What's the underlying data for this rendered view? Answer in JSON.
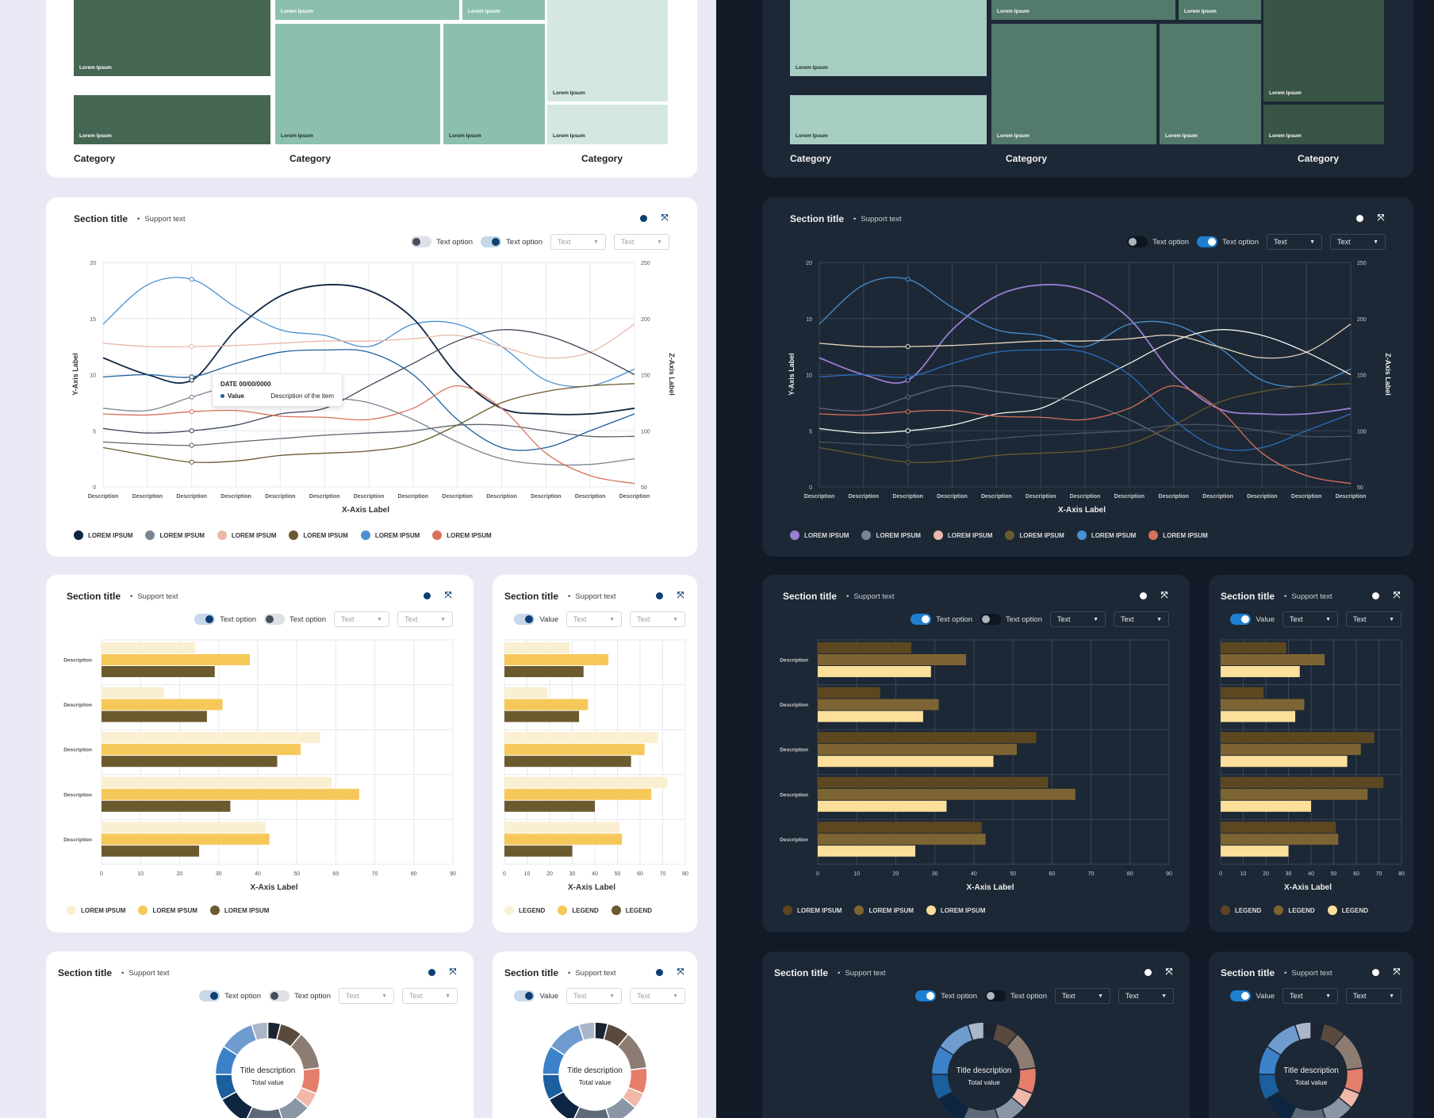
{
  "section": {
    "title": "Section title",
    "separator": "•",
    "support": "Support text",
    "toggle_label": "Text option",
    "value_label": "Value",
    "select_text": "Text",
    "select_caret": "▼",
    "expand_glyph": "⤧"
  },
  "treemap": {
    "categories": [
      "Category",
      "Category",
      "Category"
    ],
    "tile_label": "Lorem Ipsum"
  },
  "tooltip": {
    "date": "DATE 00/00/0000",
    "value": "Value",
    "description": "Description of the item"
  },
  "colors": {
    "light_bg": "#e9e9f6",
    "dark_bg": "#111a26",
    "light_panel": "#ffffff",
    "dark_panel": "#1d2836",
    "accent": "#0d3f72"
  },
  "chart_data": [
    {
      "type": "treemap",
      "id": "treemap",
      "categories": [
        "Category",
        "Category",
        "Category"
      ],
      "tile_label": "Lorem Ipsum"
    },
    {
      "type": "line",
      "id": "line",
      "xlabel": "X-Axis Label",
      "ylabel": "Y-Axis Label",
      "zlabel": "Z-Axis Label",
      "categories": [
        "Description",
        "Description",
        "Description",
        "Description",
        "Description",
        "Description",
        "Description",
        "Description",
        "Description",
        "Description",
        "Description",
        "Description",
        "Description"
      ],
      "ylim": [
        0,
        20
      ],
      "yticks": [
        0,
        5,
        10,
        15,
        20
      ],
      "zlim": [
        50,
        250
      ],
      "zticks": [
        50,
        100,
        150,
        200,
        250
      ],
      "legend": [
        "LOREM IPSUM",
        "LOREM IPSUM",
        "LOREM IPSUM",
        "LOREM IPSUM",
        "LOREM IPSUM",
        "LOREM IPSUM"
      ],
      "legend_colors_light": [
        "#0d2540",
        "#7a8591",
        "#e8b8a8",
        "#6b5a2e",
        "#4a90d0",
        "#d8705a"
      ],
      "legend_colors_dark": [
        "#9b7ed0",
        "#7a8591",
        "#e8b8a8",
        "#6b5a2e",
        "#4a90d0",
        "#d8705a"
      ],
      "series": [
        {
          "color_light": "#4a90d0",
          "color_dark": "#4a90d0",
          "values": [
            14.5,
            18,
            18.5,
            16,
            14,
            13.5,
            12.5,
            14.5,
            14.5,
            12.5,
            9.5,
            9,
            10.5
          ]
        },
        {
          "color_light": "#0d2540",
          "color_dark": "#9b7ed0",
          "values": [
            11.5,
            10,
            9.5,
            14,
            17,
            18,
            17.5,
            15,
            10,
            7,
            6.5,
            6.5,
            7
          ]
        },
        {
          "color_light": "#e8b8a8",
          "color_dark": "#e8d3bd",
          "values": [
            12.8,
            12.5,
            12.5,
            12.6,
            12.8,
            13,
            13,
            13.2,
            13.5,
            12.5,
            11.5,
            12,
            14.5
          ]
        },
        {
          "color_light": "#3b4658",
          "color_dark": "#f2f2f2",
          "values": [
            5.2,
            4.8,
            5,
            5.5,
            6.5,
            7,
            9,
            11,
            13,
            14,
            13.5,
            12,
            10
          ]
        },
        {
          "color_light": "#1b5f9e",
          "color_dark": "#2a6ec0",
          "values": [
            9.8,
            10,
            9.8,
            11,
            12,
            12.2,
            12,
            10,
            6,
            3.5,
            3.5,
            5,
            6.5
          ]
        },
        {
          "color_light": "#7a8591",
          "color_dark": "#5e6a77",
          "values": [
            7,
            6.8,
            8,
            9,
            8.5,
            8,
            7.5,
            6,
            4,
            2.5,
            2,
            2,
            2.5
          ]
        },
        {
          "color_light": "#5a6470",
          "color_dark": "#4a5562",
          "values": [
            4,
            3.8,
            3.7,
            4,
            4.3,
            4.6,
            4.8,
            5,
            5.5,
            5.5,
            5,
            4.5,
            4.5
          ]
        },
        {
          "color_light": "#d8705a",
          "color_dark": "#d8705a",
          "values": [
            6.5,
            6.4,
            6.7,
            6.8,
            6.3,
            6.2,
            6,
            7,
            9,
            7,
            3,
            1,
            0.3
          ]
        },
        {
          "color_light": "#6b5a2e",
          "color_dark": "#6b5a2e",
          "values": [
            3.5,
            2.8,
            2.2,
            2.3,
            2.8,
            3,
            3.2,
            3.8,
            5.5,
            7.5,
            8.5,
            9,
            9.2
          ]
        }
      ]
    },
    {
      "type": "bar",
      "id": "bar-wide",
      "orientation": "horizontal",
      "xlabel": "X-Axis Label",
      "categories": [
        "Description",
        "Description",
        "Description",
        "Description",
        "Description"
      ],
      "xlim": [
        0,
        90
      ],
      "xticks": [
        0,
        10,
        20,
        30,
        40,
        50,
        60,
        70,
        80,
        90
      ],
      "legend": [
        "LOREM IPSUM",
        "LOREM IPSUM",
        "LOREM IPSUM"
      ],
      "series": [
        {
          "light_color": "#fbefd2",
          "dark_color": "#5c4720",
          "values": [
            24,
            16,
            56,
            59,
            42
          ]
        },
        {
          "light_color": "#f6c85a",
          "dark_color": "#7d6433",
          "values": [
            38,
            31,
            51,
            66,
            43
          ]
        },
        {
          "light_color": "#6b5a2e",
          "dark_color": "#fbdf9a",
          "values": [
            29,
            27,
            45,
            33,
            25
          ]
        }
      ]
    },
    {
      "type": "bar",
      "id": "bar-narrow",
      "orientation": "horizontal",
      "xlabel": "X-Axis Label",
      "categories": [
        "Description",
        "Description",
        "Description",
        "Description",
        "Description"
      ],
      "xlim": [
        0,
        80
      ],
      "xticks": [
        0,
        10,
        20,
        30,
        40,
        50,
        60,
        70,
        80
      ],
      "legend": [
        "LEGEND",
        "LEGEND",
        "LEGEND"
      ],
      "series": [
        {
          "light_color": "#fbefd2",
          "dark_color": "#5c4720",
          "values": [
            29,
            19,
            68,
            72,
            51
          ]
        },
        {
          "light_color": "#f6c85a",
          "dark_color": "#7d6433",
          "values": [
            46,
            37,
            62,
            65,
            52
          ]
        },
        {
          "light_color": "#6b5a2e",
          "dark_color": "#fbdf9a",
          "values": [
            35,
            33,
            56,
            40,
            30
          ]
        }
      ]
    },
    {
      "type": "pie",
      "id": "donut",
      "center_title": "Title description",
      "center_sub": "Total value",
      "values": [
        4,
        7,
        12,
        8,
        5,
        9,
        12,
        10,
        8,
        9,
        11,
        5
      ],
      "colors": [
        "#1b2430",
        "#5a4a3e",
        "#8c7c72",
        "#e47d6a",
        "#f0b8a8",
        "#8a96a4",
        "#5e6a78",
        "#0d2540",
        "#1b5f9e",
        "#3c82c8",
        "#6e9ccf",
        "#a9b7c8"
      ]
    }
  ]
}
